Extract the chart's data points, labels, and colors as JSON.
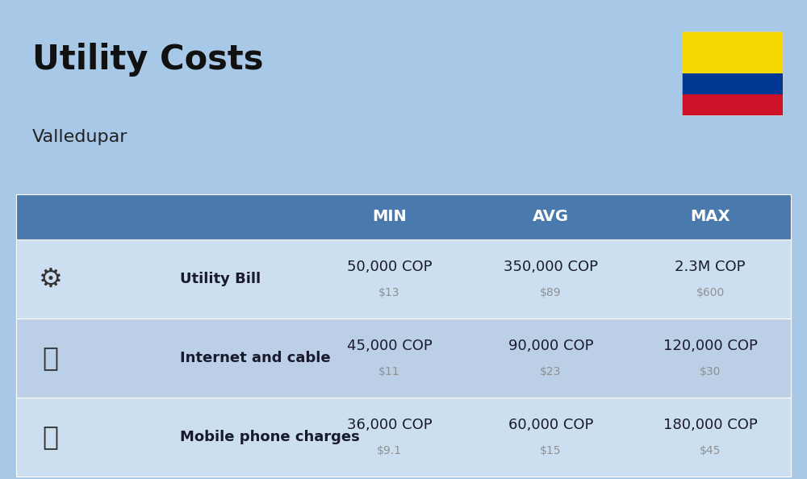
{
  "title": "Utility Costs",
  "subtitle": "Valledupar",
  "background_color": "#a8c8e8",
  "header_bg_color": "#4a7aad",
  "header_text_color": "#ffffff",
  "row_bg_color_1": "#ccdff0",
  "row_bg_color_2": "#bbcfe6",
  "rows": [
    {
      "label": "Utility Bill",
      "min_cop": "50,000 COP",
      "min_usd": "$13",
      "avg_cop": "350,000 COP",
      "avg_usd": "$89",
      "max_cop": "2.3M COP",
      "max_usd": "$600"
    },
    {
      "label": "Internet and cable",
      "min_cop": "45,000 COP",
      "min_usd": "$11",
      "avg_cop": "90,000 COP",
      "avg_usd": "$23",
      "max_cop": "120,000 COP",
      "max_usd": "$30"
    },
    {
      "label": "Mobile phone charges",
      "min_cop": "36,000 COP",
      "min_usd": "$9.1",
      "avg_cop": "60,000 COP",
      "avg_usd": "$15",
      "max_cop": "180,000 COP",
      "max_usd": "$45"
    }
  ],
  "flag_yellow": "#f5d800",
  "flag_blue": "#003893",
  "flag_red": "#ce1126",
  "cell_text_color": "#1a1a2e",
  "usd_text_color": "#909090",
  "label_fontsize": 13,
  "cop_fontsize": 13,
  "usd_fontsize": 10,
  "header_fontsize": 14
}
